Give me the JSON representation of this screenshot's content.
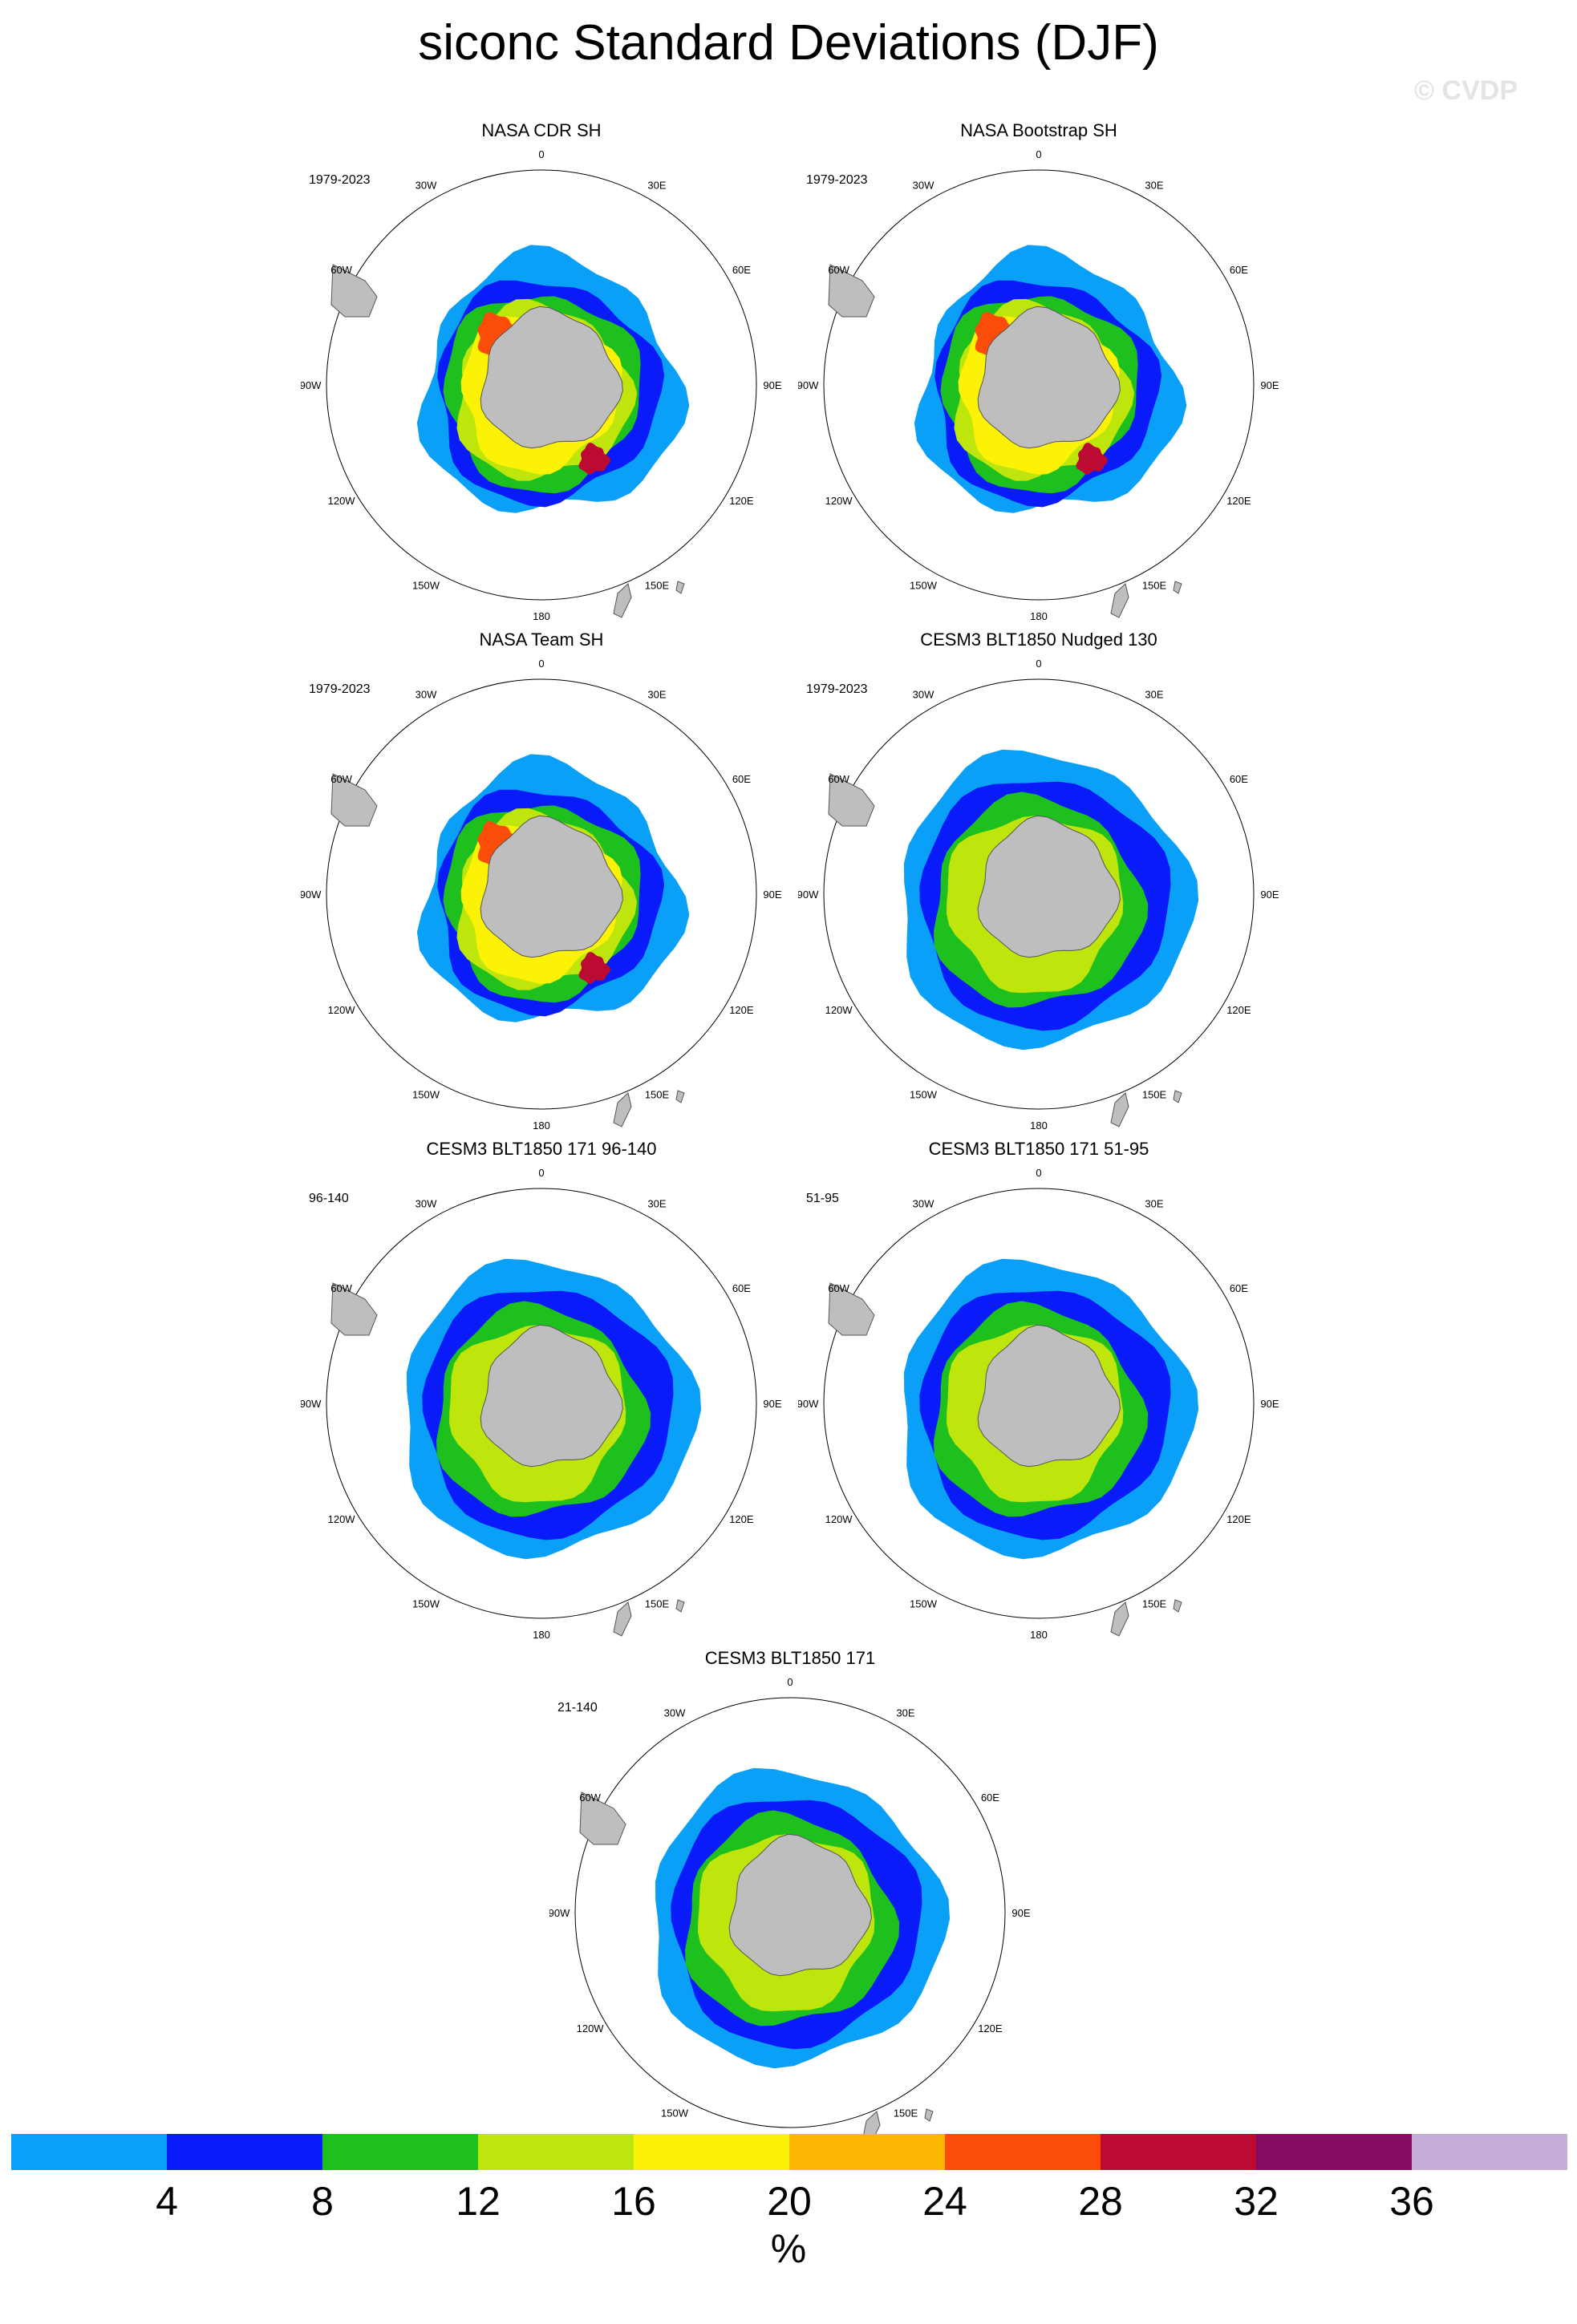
{
  "title": "siconc Standard Deviations (DJF)",
  "watermark": "© CVDP",
  "panels": [
    {
      "title": "NASA CDR SH",
      "period": "1979-2023",
      "style": "obs"
    },
    {
      "title": "NASA Bootstrap SH",
      "period": "1979-2023",
      "style": "obs"
    },
    {
      "title": "NASA Team SH",
      "period": "1979-2023",
      "style": "obs"
    },
    {
      "title": "CESM3 BLT1850 Nudged 130",
      "period": "1979-2023",
      "style": "model"
    },
    {
      "title": "CESM3 BLT1850 171 96-140",
      "period": "96-140",
      "style": "model"
    },
    {
      "title": "CESM3 BLT1850 171 51-95",
      "period": "51-95",
      "style": "model"
    },
    {
      "title": "CESM3 BLT1850 171",
      "period": "21-140",
      "style": "model"
    }
  ],
  "map_labels": {
    "lon_0": "0",
    "lon_30e": "30E",
    "lon_60e": "60E",
    "lon_90e": "90E",
    "lon_120e": "120E",
    "lon_150e": "150E",
    "lon_180": "180",
    "lon_150w": "150W",
    "lon_120w": "120W",
    "lon_90w": "90W",
    "lon_60w": "60W",
    "lon_30w": "30W"
  },
  "colorbar": {
    "units": "%",
    "labels": [
      "4",
      "8",
      "12",
      "16",
      "20",
      "24",
      "28",
      "32",
      "36"
    ],
    "colors": [
      "#0ba0f7",
      "#0a1bfa",
      "#1ec01e",
      "#bfe60c",
      "#fcf205",
      "#fcb703",
      "#fb4c09",
      "#bc0b32",
      "#860a62",
      "#c4aed8"
    ]
  }
}
